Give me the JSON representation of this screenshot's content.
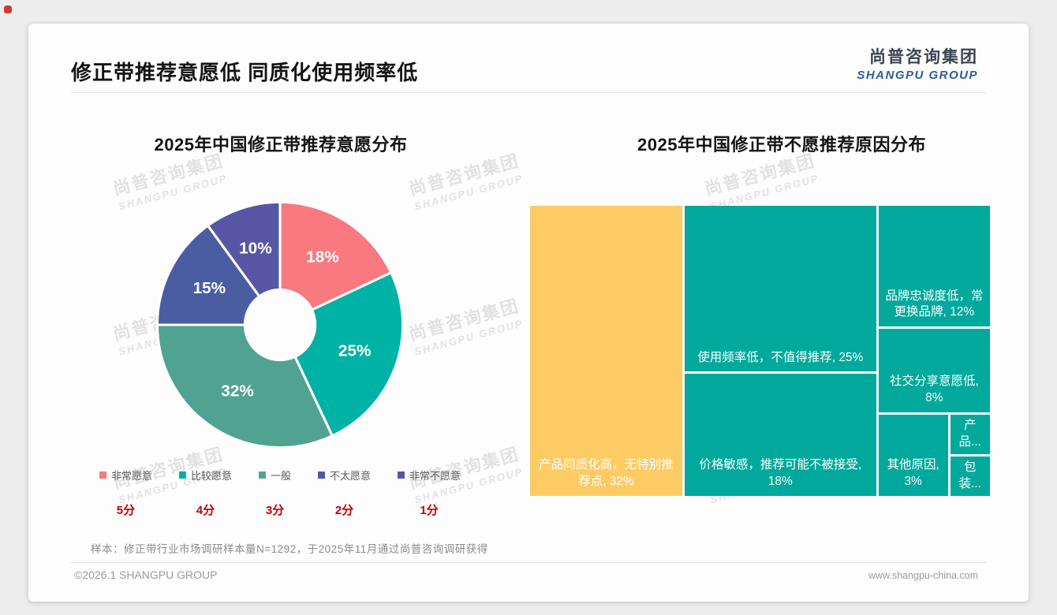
{
  "header": {
    "title": "修正带推荐意愿低 同质化使用频率低",
    "logo_cn": "尚普咨询集团",
    "logo_en": "SHANGPU GROUP"
  },
  "watermark": {
    "line1": "尚普咨询集团",
    "line2": "SHANGPU GROUP"
  },
  "footnote": "样本：修正带行业市场调研样本量N=1292，于2025年11月通过尚普咨询调研获得",
  "footer": {
    "copyright": "©2026.1 SHANGPU GROUP",
    "website": "www.shangpu-china.com"
  },
  "chart_data": [
    {
      "type": "pie",
      "donut": true,
      "title": "2025年中国修正带推荐意愿分布",
      "start_angle_deg": 0,
      "direction": "clockwise",
      "categories": [
        "非常愿意",
        "比较愿意",
        "一般",
        "不太愿意",
        "非常不愿意"
      ],
      "values": [
        18,
        25,
        32,
        15,
        10
      ],
      "unit": "%",
      "scores": [
        "5分",
        "4分",
        "3分",
        "2分",
        "1分"
      ],
      "colors": [
        "#F8797F",
        "#00B1A5",
        "#50A391",
        "#4A5DA3",
        "#5856A4"
      ],
      "legend_position": "bottom"
    },
    {
      "type": "treemap",
      "title": "2025年中国修正带不愿推荐原因分布",
      "items": [
        {
          "label": "产品同质化高，无特别推荐点",
          "value": 32,
          "display": "产品同质化高，无特别推荐点, 32%",
          "color": "#FCCB63"
        },
        {
          "label": "使用频率低，不值得推荐",
          "value": 25,
          "display": "使用频率低，不值得推荐, 25%",
          "color": "#00A99C"
        },
        {
          "label": "价格敏感，推荐可能不被接受",
          "value": 18,
          "display": "价格敏感，推荐可能不被接受, 18%",
          "color": "#00A99C"
        },
        {
          "label": "品牌忠诚度低，常更换品牌",
          "value": 12,
          "display": "品牌忠诚度低，常更换品牌, 12%",
          "color": "#00A99C"
        },
        {
          "label": "社交分享意愿低",
          "value": 8,
          "display": "社交分享意愿低, 8%",
          "color": "#00A99C"
        },
        {
          "label": "其他原因",
          "value": 3,
          "display": "其他原因, 3%",
          "color": "#00A99C"
        },
        {
          "label": "产品",
          "value": 1,
          "display": "产品...",
          "color": "#00A99C"
        },
        {
          "label": "包装",
          "value": 1,
          "display": "包装...",
          "color": "#00A99C"
        }
      ]
    }
  ]
}
